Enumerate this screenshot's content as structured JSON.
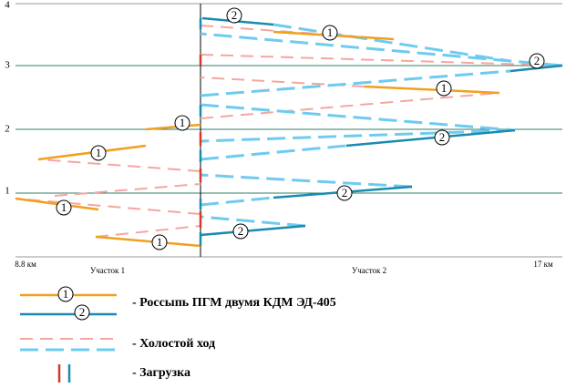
{
  "axis": {
    "y_ticks": [
      "4",
      "3",
      "2",
      "1"
    ],
    "x_start": "8.8 км",
    "x_end": "17 км",
    "sections": [
      "Участок 1",
      "Участок 2"
    ]
  },
  "route_labels": [
    "1",
    "1",
    "1",
    "1",
    "2",
    "2",
    "2",
    "1",
    "2",
    "1",
    "2"
  ],
  "legend": {
    "work_labels": [
      "1",
      "2"
    ],
    "work": "- Россыпь ПГМ двумя КДМ ЭД-405",
    "idle": "- Холостой ход",
    "load": "- Загрузка"
  }
}
